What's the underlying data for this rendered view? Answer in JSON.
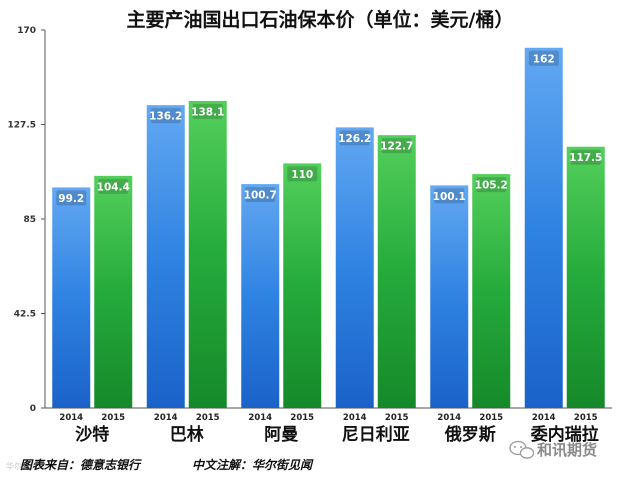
{
  "chart_data": {
    "type": "bar",
    "title": "主要产油国出口石油保本价（单位：美元/桶）",
    "categories": [
      "沙特",
      "巴林",
      "阿曼",
      "尼日利亚",
      "俄罗斯",
      "委内瑞拉"
    ],
    "x_sublabels": [
      "2014",
      "2015"
    ],
    "series": [
      {
        "name": "2014",
        "values": [
          99.2,
          136.2,
          100.7,
          126.2,
          100.1,
          162
        ],
        "labels": [
          "99.2",
          "136.2",
          "100.7",
          "126.2",
          "100.1",
          "162"
        ],
        "color": "#2b7de0"
      },
      {
        "name": "2015",
        "values": [
          104.4,
          138.1,
          110,
          122.7,
          105.2,
          117.5
        ],
        "labels": [
          "104.4",
          "138.1",
          "110",
          "122.7",
          "105.2",
          "117.5"
        ],
        "color": "#23a93a"
      }
    ],
    "yticks": [
      0,
      42.5,
      85,
      127.5,
      170
    ],
    "ytick_labels": [
      "0",
      "42.5",
      "85",
      "127.5",
      "170"
    ],
    "ylim": [
      0,
      170
    ],
    "grid": false,
    "legend": "none"
  },
  "footer": {
    "source": "图表来自：德意志银行",
    "note": "中文注解：华尔街见闻"
  },
  "brand": {
    "name": "和讯期货",
    "icon": "wechat-icon"
  },
  "watermark": "华尔街见闻"
}
